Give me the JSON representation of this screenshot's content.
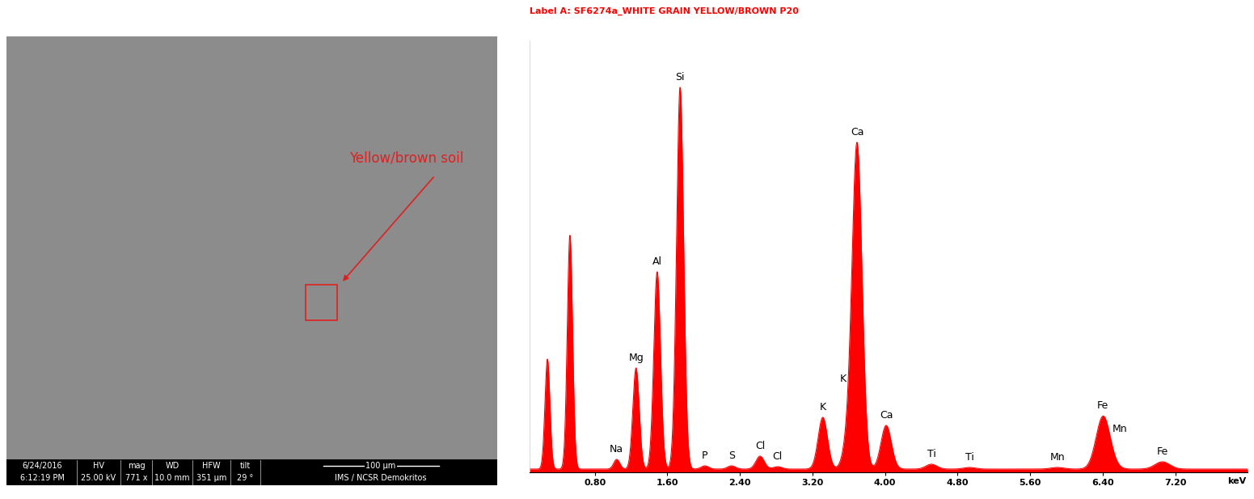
{
  "sem_image": {
    "annotation": "Yellow/brown soil",
    "date": "6/24/2016",
    "time": "6:12:19 PM",
    "parameters": [
      {
        "name": "HV",
        "value": "25.00 kV"
      },
      {
        "name": "mag",
        "value": "771 x"
      },
      {
        "name": "WD",
        "value": "10.0 mm"
      },
      {
        "name": "HFW",
        "value": "351 µm"
      },
      {
        "name": "tilt",
        "value": "29 °"
      }
    ],
    "scale_bar": "100 µm",
    "institution": "IMS / NCSR Demokritos"
  },
  "chart_data": {
    "type": "area",
    "title": "Label A: SF6274a_WHITE GRAIN YELLOW/BROWN P20",
    "x_label": "keV",
    "color": "#ff0000",
    "x": [
      0.277,
      0.525,
      1.041,
      1.254,
      1.487,
      1.74,
      2.013,
      2.307,
      2.622,
      2.815,
      3.314,
      3.59,
      3.692,
      4.013,
      4.511,
      4.932,
      5.899,
      6.404,
      6.49,
      7.058
    ],
    "values": [
      136,
      289,
      12,
      125,
      244,
      472,
      4,
      4,
      16,
      3,
      64,
      30,
      399,
      54,
      6,
      2,
      2,
      64,
      3,
      9
    ],
    "peak_labels": [
      null,
      null,
      "Na",
      "Mg",
      "Al",
      "Si",
      "P",
      "S",
      "Cl",
      "Cl",
      "K",
      "K",
      "Ca",
      "Ca",
      "Ti",
      "Ti",
      "Mn",
      "Fe",
      "Mn",
      "Fe"
    ],
    "background": 4,
    "xlim": [
      0.08,
      8.0
    ],
    "ylim": [
      0,
      534
    ],
    "xticks": [
      {
        "value": 0.8,
        "label": "0.80"
      },
      {
        "value": 1.6,
        "label": "1.60"
      },
      {
        "value": 2.4,
        "label": "2.40"
      },
      {
        "value": 3.2,
        "label": "3.20"
      },
      {
        "value": 4.0,
        "label": "4.00"
      },
      {
        "value": 4.8,
        "label": "4.80"
      },
      {
        "value": 5.6,
        "label": "5.60"
      },
      {
        "value": 6.4,
        "label": "6.40"
      },
      {
        "value": 7.2,
        "label": "7.20"
      }
    ],
    "tick_labels": "x"
  }
}
